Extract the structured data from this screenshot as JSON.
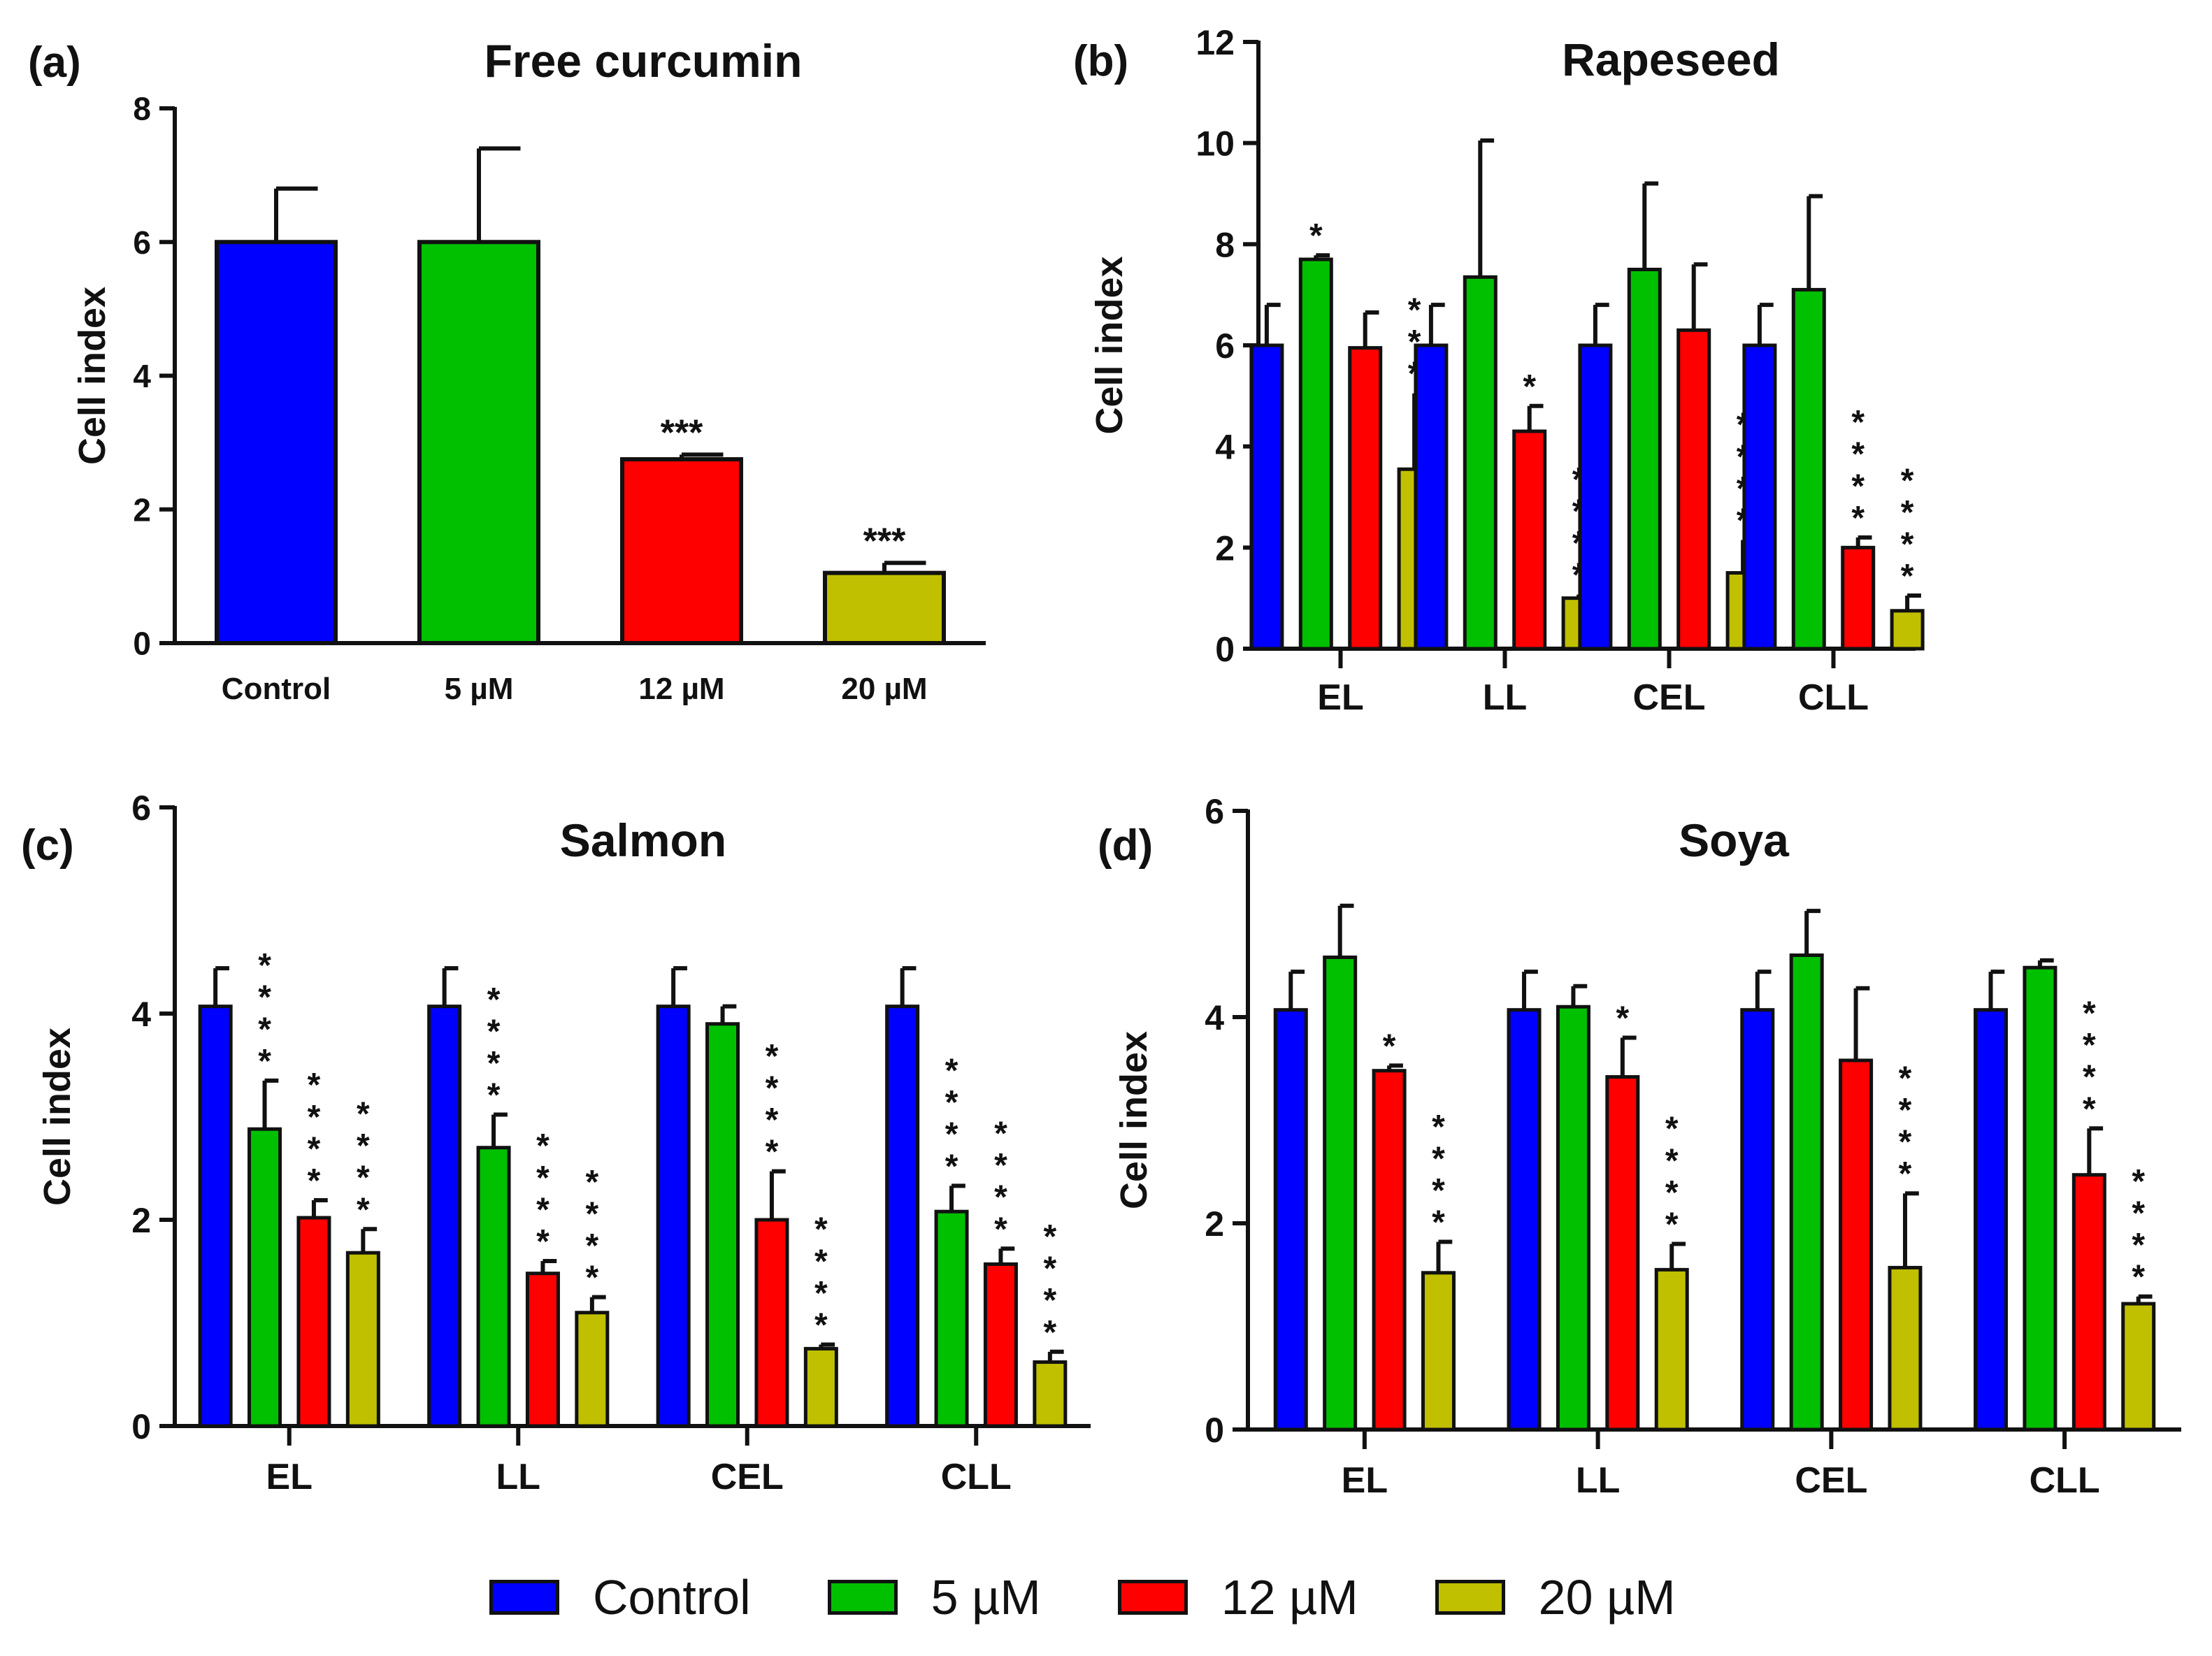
{
  "colors": {
    "Control": "#0000ff",
    "5 µM": "#00c000",
    "12 µM": "#ff0000",
    "20 µM": "#c0c000",
    "outline": "#111111"
  },
  "legend": {
    "items": [
      {
        "label": "Control",
        "color": "#0000ff"
      },
      {
        "label": "5 µM",
        "color": "#00c000"
      },
      {
        "label": "12 µM",
        "color": "#ff0000"
      },
      {
        "label": "20 µM",
        "color": "#c0c000"
      }
    ]
  },
  "chart_data": [
    {
      "panel": "(a)",
      "type": "bar",
      "title": "Free curcumin",
      "ylabel": "Cell index",
      "xlabel": "",
      "ylim": [
        0,
        8
      ],
      "yticks": [
        0,
        2,
        4,
        6,
        8
      ],
      "categories": [
        "Control",
        "5 µM",
        "12 µM",
        "20 µM"
      ],
      "series": [
        {
          "name": "Cell index",
          "values": [
            6.0,
            6.0,
            2.75,
            1.05
          ],
          "errors": [
            0.8,
            1.4,
            0.07,
            0.15
          ],
          "significance": [
            "",
            "",
            "***",
            "***"
          ]
        }
      ]
    },
    {
      "panel": "(b)",
      "type": "bar",
      "title": "Rapeseed",
      "ylabel": "Cell index",
      "xlabel": "",
      "ylim": [
        0,
        12
      ],
      "yticks": [
        0,
        2,
        4,
        6,
        8,
        10,
        12
      ],
      "categories": [
        "EL",
        "LL",
        "CEL",
        "CLL"
      ],
      "series": [
        {
          "name": "Control",
          "values": [
            6.0,
            6.0,
            6.0,
            6.0
          ],
          "errors": [
            0.8,
            0.8,
            0.8,
            0.8
          ],
          "significance": [
            "",
            "",
            "",
            ""
          ]
        },
        {
          "name": "5 µM",
          "values": [
            7.7,
            7.35,
            7.5,
            7.1
          ],
          "errors": [
            0.08,
            2.7,
            1.7,
            1.85
          ],
          "significance": [
            "*",
            "",
            "",
            ""
          ]
        },
        {
          "name": "12 µM",
          "values": [
            5.95,
            4.3,
            6.3,
            2.0
          ],
          "errors": [
            0.7,
            0.5,
            1.3,
            0.2
          ],
          "significance": [
            "",
            "*",
            "",
            "****"
          ]
        },
        {
          "name": "20 µM",
          "values": [
            3.55,
            1.0,
            1.5,
            0.75
          ],
          "errors": [
            1.5,
            0.07,
            0.65,
            0.3
          ],
          "significance": [
            "***",
            "****",
            "****",
            "****"
          ]
        }
      ]
    },
    {
      "panel": "(c)",
      "type": "bar",
      "title": "Salmon",
      "ylabel": "Cell index",
      "xlabel": "",
      "ylim": [
        0,
        6
      ],
      "yticks": [
        0,
        2,
        4,
        6
      ],
      "categories": [
        "EL",
        "LL",
        "CEL",
        "CLL"
      ],
      "series": [
        {
          "name": "Control",
          "values": [
            4.07,
            4.07,
            4.07,
            4.07
          ],
          "errors": [
            0.37,
            0.37,
            0.37,
            0.37
          ],
          "significance": [
            "",
            "",
            "",
            ""
          ]
        },
        {
          "name": "5 µM",
          "values": [
            2.88,
            2.7,
            3.9,
            2.08
          ],
          "errors": [
            0.47,
            0.32,
            0.17,
            0.25
          ],
          "significance": [
            "****",
            "****",
            "",
            "****"
          ]
        },
        {
          "name": "12 µM",
          "values": [
            2.02,
            1.48,
            2.0,
            1.57
          ],
          "errors": [
            0.17,
            0.12,
            0.47,
            0.15
          ],
          "significance": [
            "****",
            "****",
            "****",
            "****"
          ]
        },
        {
          "name": "20 µM",
          "values": [
            1.68,
            1.1,
            0.75,
            0.62
          ],
          "errors": [
            0.23,
            0.15,
            0.04,
            0.1
          ],
          "significance": [
            "****",
            "****",
            "****",
            "****"
          ]
        }
      ]
    },
    {
      "panel": "(d)",
      "type": "bar",
      "title": "Soya",
      "ylabel": "Cell index",
      "xlabel": "",
      "ylim": [
        0,
        6
      ],
      "yticks": [
        0,
        2,
        4,
        6
      ],
      "categories": [
        "EL",
        "LL",
        "CEL",
        "CLL"
      ],
      "series": [
        {
          "name": "Control",
          "values": [
            4.07,
            4.07,
            4.07,
            4.07
          ],
          "errors": [
            0.37,
            0.37,
            0.37,
            0.37
          ],
          "significance": [
            "",
            "",
            "",
            ""
          ]
        },
        {
          "name": "5 µM",
          "values": [
            4.58,
            4.1,
            4.6,
            4.48
          ],
          "errors": [
            0.5,
            0.2,
            0.43,
            0.07
          ],
          "significance": [
            "",
            "",
            "",
            ""
          ]
        },
        {
          "name": "12 µM",
          "values": [
            3.48,
            3.42,
            3.58,
            2.47
          ],
          "errors": [
            0.05,
            0.38,
            0.7,
            0.45
          ],
          "significance": [
            "*",
            "*",
            "",
            "****"
          ]
        },
        {
          "name": "20 µM",
          "values": [
            1.52,
            1.55,
            1.57,
            1.22
          ],
          "errors": [
            0.3,
            0.25,
            0.72,
            0.07
          ],
          "significance": [
            "****",
            "****",
            "****",
            "****"
          ]
        }
      ]
    }
  ]
}
